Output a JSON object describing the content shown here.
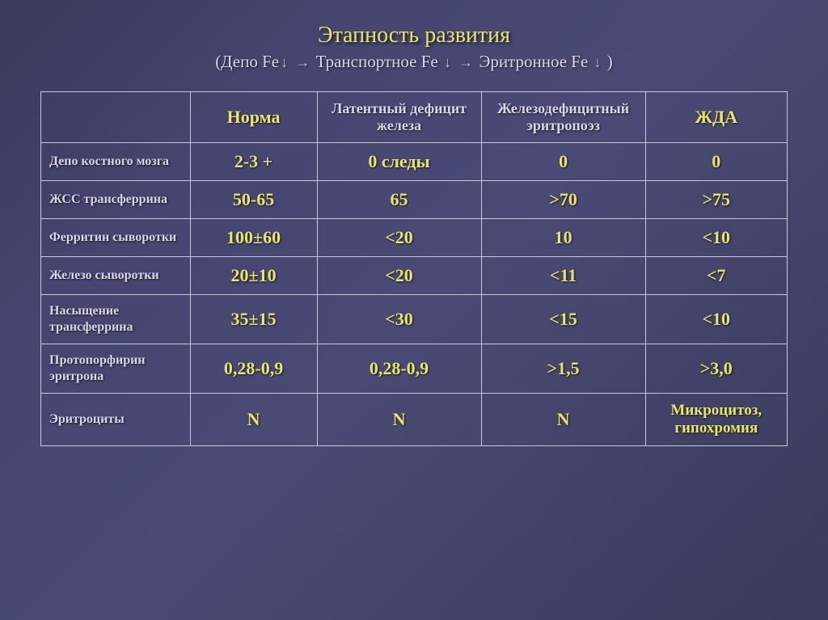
{
  "title": "Этапность развития",
  "subtitle": {
    "p1": "(Депо Fe",
    "p2": "Транспортное Fe",
    "p3": "Эритронное Fe",
    "p4": ")"
  },
  "columns": {
    "c1": "Норма",
    "c2": "Латентный дефицит железа",
    "c3": "Железодефицитный эритропоэз",
    "c4": "ЖДА"
  },
  "rows": [
    {
      "label": "Депо костного мозга",
      "v": [
        "2-3 +",
        "0 следы",
        "0",
        "0"
      ]
    },
    {
      "label": "ЖСС трансферрина",
      "v": [
        "50-65",
        "65",
        ">70",
        ">75"
      ]
    },
    {
      "label": "Ферритин сыворотки",
      "v": [
        "100±60",
        "<20",
        "10",
        "<10"
      ]
    },
    {
      "label": "Железо сыворотки",
      "v": [
        "20±10",
        "<20",
        "<11",
        "<7"
      ]
    },
    {
      "label": "Насыщение трансферрина",
      "v": [
        "35±15",
        "<30",
        "<15",
        "<10"
      ]
    },
    {
      "label": "Протопорфирин эритрона",
      "v": [
        "0,28-0,9",
        "0,28-0,9",
        ">1,5",
        ">3,0"
      ]
    },
    {
      "label": "Эритроциты",
      "v": [
        "N",
        "N",
        "N",
        "Микроцитоз, гипохромия"
      ]
    }
  ],
  "style": {
    "title_color": "#e6e66a",
    "header_text_color": "#d8d8e6",
    "value_color": "#e6e66a",
    "border_color": "#c8c8d8",
    "background_gradient": [
      "#3a3a5a",
      "#454570",
      "#4a4a75",
      "#3a3a5a"
    ],
    "title_fontsize": 28,
    "subtitle_fontsize": 21,
    "header_fontsize_small": 18,
    "header_fontsize_big": 22,
    "rowlabel_fontsize": 16,
    "value_fontsize": 22,
    "col_widths_pct": [
      20,
      17,
      22,
      22,
      19
    ]
  }
}
